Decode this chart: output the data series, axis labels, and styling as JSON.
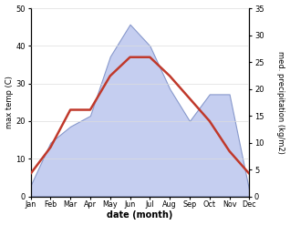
{
  "months": [
    "Jan",
    "Feb",
    "Mar",
    "Apr",
    "May",
    "Jun",
    "Jul",
    "Aug",
    "Sep",
    "Oct",
    "Nov",
    "Dec"
  ],
  "temperature": [
    6,
    13,
    23,
    23,
    32,
    37,
    37,
    32,
    26,
    20,
    12,
    6
  ],
  "precipitation": [
    2,
    10,
    13,
    15,
    26,
    32,
    28,
    20,
    14,
    19,
    19,
    1
  ],
  "temp_ylim": [
    0,
    50
  ],
  "precip_ylim": [
    0,
    35
  ],
  "temp_color": "#c0392b",
  "precip_fill_color": "#c5cef0",
  "precip_edge_color": "#8899cc",
  "xlabel": "date (month)",
  "ylabel_left": "max temp (C)",
  "ylabel_right": "med. precipitation (kg/m2)",
  "temp_linewidth": 1.8,
  "left_ticks": [
    0,
    10,
    20,
    30,
    40,
    50
  ],
  "right_ticks": [
    0,
    5,
    10,
    15,
    20,
    25,
    30,
    35
  ],
  "grid_color": "#dddddd",
  "figsize": [
    3.18,
    2.47
  ],
  "dpi": 100
}
